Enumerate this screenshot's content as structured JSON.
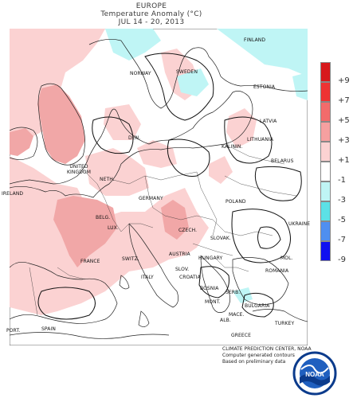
{
  "title": {
    "region": "EUROPE",
    "product": "Temperature Anomaly (°C)",
    "period": "JUL 14  -  20, 2013"
  },
  "legend": {
    "labels": [
      "+9",
      "+7",
      "+5",
      "+3",
      "+1",
      "-1",
      "-3",
      "-5",
      "-7",
      "-9"
    ],
    "colors": [
      "#d7191c",
      "#ee3333",
      "#f26b6b",
      "#f5a0a0",
      "#fbd2d2",
      "#ffffff",
      "#bff5f5",
      "#5ce1e6",
      "#4f8ff0",
      "#1010f0"
    ]
  },
  "countries": {
    "finland": "FINLAND",
    "norway": "NORWAY",
    "sweden": "SWEDEN",
    "estonia": "ESTONIA",
    "latvia": "LATVIA",
    "lithuania": "LITHUANIA",
    "kalinin": "KALININ.",
    "den": "DEN.",
    "belarus": "BELARUS",
    "ireland": "IRELAND",
    "uk": "UNITED\nKINGDOM",
    "neth": "NETH.",
    "germany": "GERMANY",
    "poland": "POLAND",
    "belg": "BELG.",
    "lux": "LUX.",
    "czech": "CZECH.",
    "slovak": "SLOVAK.",
    "ukraine": "UKRAINE",
    "france": "FRANCE",
    "switz": "SWITZ.",
    "austria": "AUSTRIA",
    "hungary": "HUNGARY",
    "mol": "MOL.",
    "slov": "SLOV.",
    "croatia": "CROATIA",
    "romania": "ROMANIA",
    "italy": "ITALY",
    "bosnia": "BOSNIA",
    "serb": "SERB.",
    "mont": "MONT.",
    "bulgaria": "BULGARIA",
    "mace": "MACE.",
    "alb": "ALB.",
    "greece": "GREECE",
    "turkey": "TURKEY",
    "port": "PORT.",
    "spain": "SPAIN"
  },
  "credits": {
    "line1": "CLIMATE PREDICTION CENTER, NOAA",
    "line2": "Computer generated contours",
    "line3": "Based on preliminary data"
  },
  "logo": {
    "text": "NOAA",
    "ring": "NATIONAL OCEANIC AND ATMOSPHERIC ADMINISTRATION"
  }
}
